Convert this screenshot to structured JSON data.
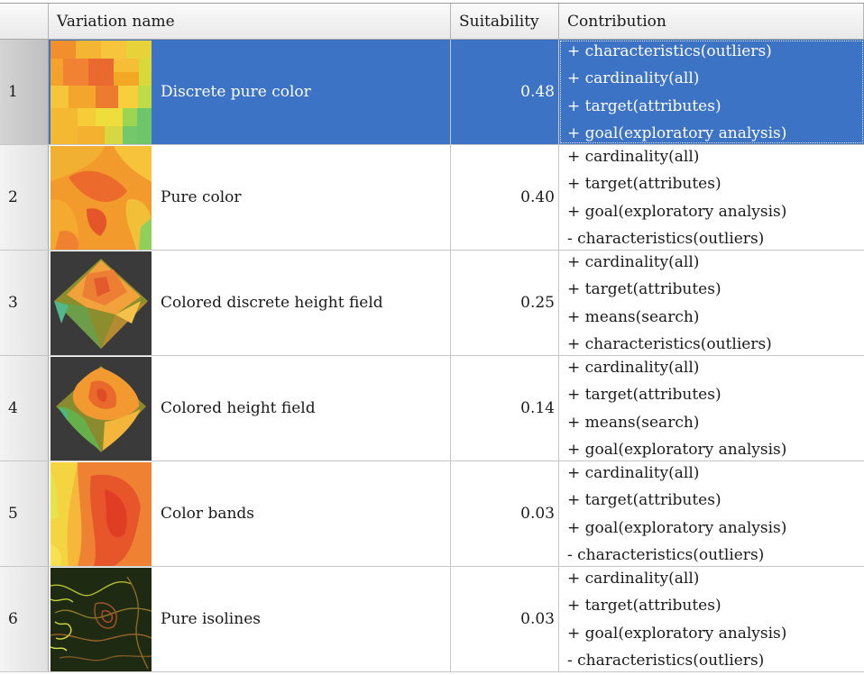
{
  "header": {
    "index_label": "",
    "name_label": "Variation name",
    "suitability_label": "Suitability",
    "contribution_label": "Contribution"
  },
  "selected_row": "1",
  "rows": [
    {
      "index": "1",
      "name": "Discrete pure color",
      "suitability": "0.48",
      "contribution": [
        "+ characteristics(outliers)",
        "+ cardinality(all)",
        "+ target(attributes)",
        "+ goal(exploratory analysis)"
      ]
    },
    {
      "index": "2",
      "name": "Pure color",
      "suitability": "0.40",
      "contribution": [
        "+ cardinality(all)",
        "+ target(attributes)",
        "+ goal(exploratory analysis)",
        "- characteristics(outliers)"
      ]
    },
    {
      "index": "3",
      "name": "Colored discrete height field",
      "suitability": "0.25",
      "contribution": [
        "+ cardinality(all)",
        "+ target(attributes)",
        "+ means(search)",
        "+ characteristics(outliers)"
      ]
    },
    {
      "index": "4",
      "name": "Colored height field",
      "suitability": "0.14",
      "contribution": [
        "+ cardinality(all)",
        "+ target(attributes)",
        "+ means(search)",
        "+ goal(exploratory analysis)"
      ]
    },
    {
      "index": "5",
      "name": "Color bands",
      "suitability": "0.03",
      "contribution": [
        "+ cardinality(all)",
        "+ target(attributes)",
        "+ goal(exploratory analysis)",
        "- characteristics(outliers)"
      ]
    },
    {
      "index": "6",
      "name": "Pure isolines",
      "suitability": "0.03",
      "contribution": [
        "+ cardinality(all)",
        "+ target(attributes)",
        "+ goal(exploratory analysis)",
        "- characteristics(outliers)"
      ]
    }
  ],
  "colors": {
    "selection": "#3d73c4",
    "header_bg": "#eeeeee",
    "grid": "#c6c6c6"
  },
  "thumbnails": [
    "discrete-pure-color-thumbnail",
    "pure-color-thumbnail",
    "colored-discrete-height-field-thumbnail",
    "colored-height-field-thumbnail",
    "color-bands-thumbnail",
    "pure-isolines-thumbnail"
  ]
}
